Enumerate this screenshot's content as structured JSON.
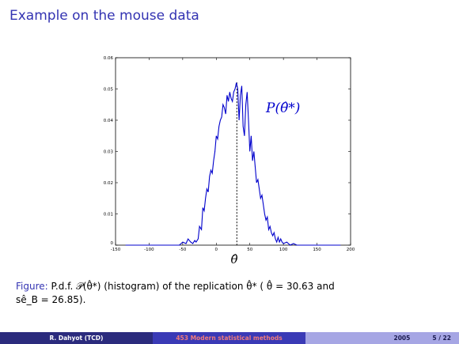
{
  "slide": {
    "title": "Example on the mouse data"
  },
  "chart_data": {
    "type": "line",
    "xlim": [
      -150,
      200
    ],
    "ylim": [
      0,
      0.06
    ],
    "xticks": [
      "-150",
      "-100",
      "-50",
      "0",
      "50",
      "100",
      "150",
      "200"
    ],
    "yticks": [
      "0",
      "0.01",
      "0.02",
      "0.03",
      "0.04",
      "0.05",
      "0.06"
    ],
    "annotation": "P(θ̂*)",
    "xlabel": "θ̂",
    "vline_x": 30.63,
    "color": "#0000cc",
    "series": [
      {
        "x": [
          -135,
          -110,
          -90,
          -70,
          -55,
          -50,
          -45,
          -42,
          -38,
          -35,
          -32,
          -30,
          -27,
          -25,
          -22,
          -20,
          -18,
          -16,
          -14,
          -12,
          -10,
          -8,
          -6,
          -4,
          -2,
          0,
          2,
          4,
          6,
          8,
          10,
          12,
          14,
          16,
          18,
          20,
          22,
          24,
          26,
          28,
          30,
          32,
          34,
          36,
          38,
          40,
          42,
          44,
          46,
          48,
          50,
          52,
          54,
          56,
          58,
          60,
          62,
          64,
          66,
          68,
          70,
          72,
          74,
          76,
          78,
          80,
          82,
          84,
          86,
          88,
          90,
          92,
          94,
          96,
          98,
          100,
          105,
          110,
          115,
          120,
          130,
          140,
          150,
          170,
          185
        ],
        "y": [
          0,
          0,
          0,
          0,
          0,
          0.001,
          0.0005,
          0.002,
          0.001,
          0.0005,
          0.0015,
          0.001,
          0.002,
          0.006,
          0.005,
          0.012,
          0.011,
          0.015,
          0.018,
          0.017,
          0.022,
          0.024,
          0.023,
          0.027,
          0.03,
          0.035,
          0.034,
          0.038,
          0.04,
          0.041,
          0.045,
          0.044,
          0.042,
          0.048,
          0.046,
          0.049,
          0.047,
          0.046,
          0.049,
          0.05,
          0.052,
          0.05,
          0.04,
          0.048,
          0.051,
          0.038,
          0.035,
          0.045,
          0.049,
          0.04,
          0.03,
          0.035,
          0.027,
          0.03,
          0.025,
          0.02,
          0.021,
          0.018,
          0.015,
          0.016,
          0.013,
          0.01,
          0.008,
          0.009,
          0.005,
          0.006,
          0.004,
          0.003,
          0.004,
          0.002,
          0.001,
          0.0025,
          0.001,
          0.002,
          0.001,
          0.0005,
          0.001,
          0,
          0.0005,
          0,
          0,
          0,
          0,
          0,
          0
        ]
      }
    ]
  },
  "caption": {
    "label": "Figure:",
    "text_line1": "P.d.f. 𝒫(θ̂*) (histogram) of the replication θ̂* ( θ̂ = 30.63 and",
    "text_line2": "sê_B = 26.85)."
  },
  "footer": {
    "author": "R. Dahyot  (TCD)",
    "course": "453 Modern statistical methods",
    "year": "2005",
    "page": "5 / 22"
  }
}
